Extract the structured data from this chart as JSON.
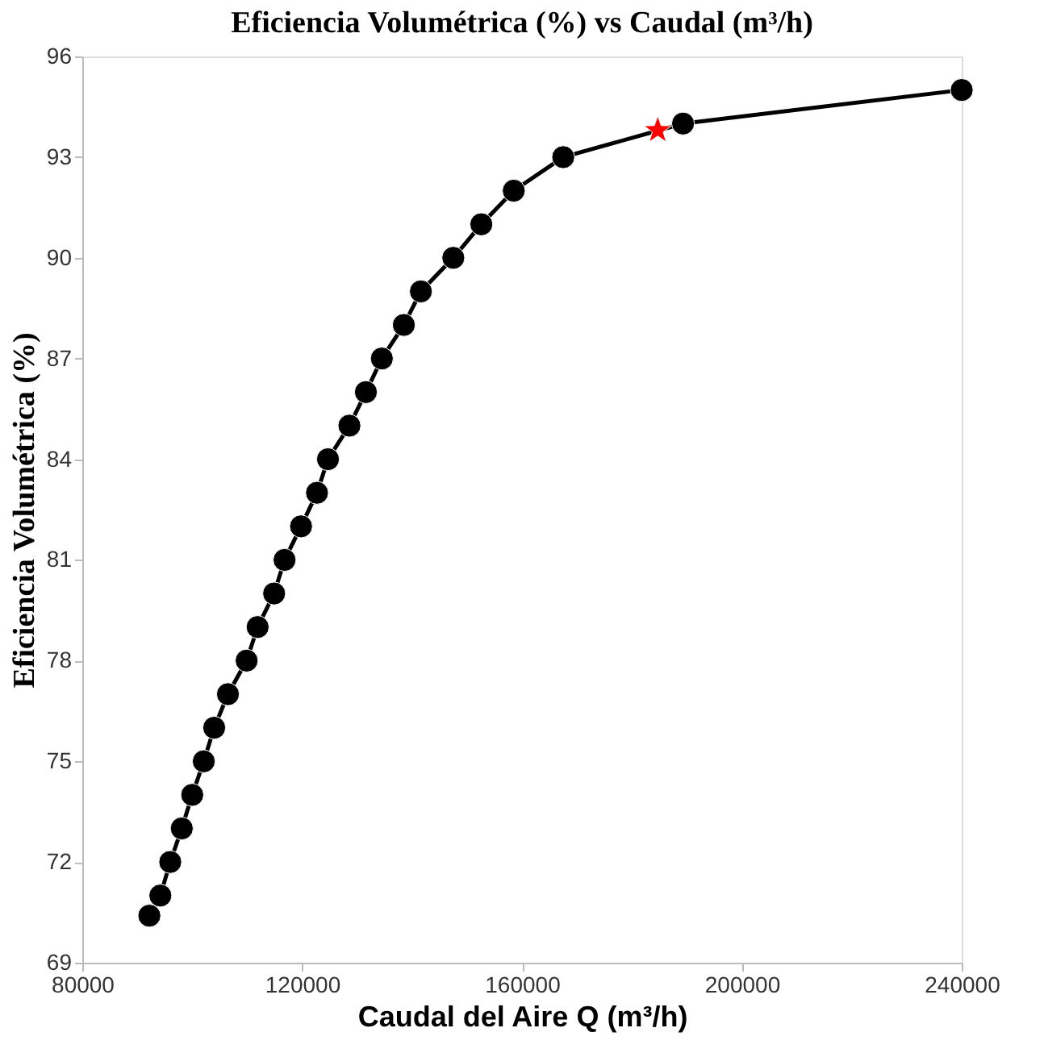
{
  "chart_data": {
    "type": "line",
    "title": "Eficiencia Volumétrica (%) vs Caudal (m³/h)",
    "xlabel": "Caudal del Aire Q (m³/h)",
    "ylabel": "Eficiencia Volumétrica (%)",
    "xlim": [
      80000,
      240000
    ],
    "xticks": [
      80000,
      120000,
      160000,
      200000,
      240000
    ],
    "ylim": [
      69,
      96
    ],
    "yticks": [
      69,
      72,
      75,
      78,
      81,
      84,
      87,
      90,
      93,
      96
    ],
    "grid": false,
    "series": [
      {
        "color": "#000000",
        "marker": "circle",
        "line_style": "solid",
        "x": [
          92200,
          94200,
          96000,
          98100,
          100000,
          102100,
          104000,
          106500,
          109900,
          111900,
          114900,
          116800,
          119800,
          122700,
          124700,
          128600,
          131600,
          134500,
          138500,
          141600,
          147500,
          152600,
          158500,
          167500,
          189300,
          240000
        ],
        "values": [
          70.4,
          71,
          72,
          73,
          74,
          75,
          76,
          77,
          78,
          79,
          80,
          81,
          82,
          83,
          84,
          85,
          86,
          87,
          88,
          89,
          90,
          91,
          92,
          93,
          94,
          95
        ]
      },
      {
        "type": "scatter",
        "color": "#ff0000",
        "marker": "star",
        "x": [
          184700
        ],
        "values": [
          93.8
        ]
      }
    ]
  }
}
